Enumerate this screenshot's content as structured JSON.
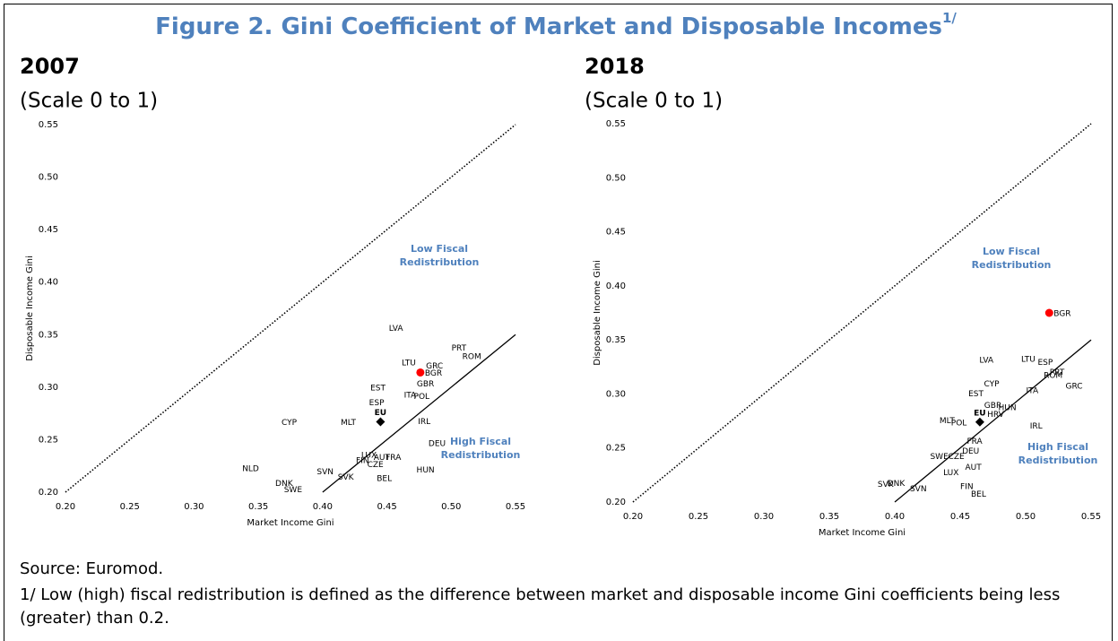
{
  "title": "Figure 2. Gini Coefficient of Market and Disposable Incomes",
  "title_note": "1/",
  "source": "Source: Euromod.",
  "footnote": "1/ Low (high) fiscal redistribution is defined as the difference between market and disposable income Gini coefficients being less (greater) than 0.2.",
  "chart_data": [
    {
      "type": "scatter",
      "title": "2007",
      "subtitle": "(Scale 0 to 1)",
      "xlabel": "Market Income Gini",
      "ylabel": "Disposable Income Gini",
      "xlim": [
        0.2,
        0.55
      ],
      "ylim": [
        0.2,
        0.55
      ],
      "xticks": [
        {
          "value": 0.2,
          "label": "0.20"
        },
        0.25,
        {
          "value": 0.3,
          "label": "0.30"
        },
        0.35,
        {
          "value": 0.4,
          "label": "0.40"
        },
        0.45,
        {
          "value": 0.5,
          "label": "0.50"
        },
        0.55
      ],
      "yticks": [
        {
          "value": 0.2,
          "label": "0.20"
        },
        0.25,
        {
          "value": 0.3,
          "label": "0.30"
        },
        0.35,
        {
          "value": 0.4,
          "label": "0.40"
        },
        0.45,
        {
          "value": 0.5,
          "label": "0.50"
        },
        0.55
      ],
      "reference_lines": [
        {
          "offset": 0,
          "style": "dotted"
        },
        {
          "offset": -0.2,
          "style": "solid"
        }
      ],
      "annotations": [
        "Low Fiscal Redistribution",
        "High Fiscal Redistribution"
      ],
      "points": [
        {
          "label": "LVA",
          "x": 0.457,
          "y": 0.356
        },
        {
          "label": "PRT",
          "x": 0.506,
          "y": 0.337
        },
        {
          "label": "ROM",
          "x": 0.516,
          "y": 0.329
        },
        {
          "label": "LTU",
          "x": 0.467,
          "y": 0.323
        },
        {
          "label": "GRC",
          "x": 0.487,
          "y": 0.32
        },
        {
          "label": "BGR",
          "x": 0.476,
          "y": 0.314,
          "marker": "circle",
          "color": "#ff0000"
        },
        {
          "label": "GBR",
          "x": 0.48,
          "y": 0.303
        },
        {
          "label": "EST",
          "x": 0.443,
          "y": 0.299
        },
        {
          "label": "ITA",
          "x": 0.468,
          "y": 0.292
        },
        {
          "label": "POL",
          "x": 0.477,
          "y": 0.291
        },
        {
          "label": "ESP",
          "x": 0.442,
          "y": 0.285
        },
        {
          "label": "EU",
          "x": 0.445,
          "y": 0.267,
          "marker": "diamond",
          "color": "#000000"
        },
        {
          "label": "CYP",
          "x": 0.374,
          "y": 0.266
        },
        {
          "label": "MLT",
          "x": 0.42,
          "y": 0.266
        },
        {
          "label": "IRL",
          "x": 0.479,
          "y": 0.267
        },
        {
          "label": "DEU",
          "x": 0.489,
          "y": 0.246
        },
        {
          "label": "LUX",
          "x": 0.436,
          "y": 0.235
        },
        {
          "label": "AUT",
          "x": 0.446,
          "y": 0.233
        },
        {
          "label": "FRA",
          "x": 0.455,
          "y": 0.233
        },
        {
          "label": "FIN",
          "x": 0.431,
          "y": 0.23
        },
        {
          "label": "CZE",
          "x": 0.441,
          "y": 0.226
        },
        {
          "label": "NLD",
          "x": 0.344,
          "y": 0.222
        },
        {
          "label": "SVN",
          "x": 0.402,
          "y": 0.219
        },
        {
          "label": "HUN",
          "x": 0.48,
          "y": 0.221
        },
        {
          "label": "SVK",
          "x": 0.418,
          "y": 0.214
        },
        {
          "label": "BEL",
          "x": 0.448,
          "y": 0.213
        },
        {
          "label": "DNK",
          "x": 0.37,
          "y": 0.208
        },
        {
          "label": "SWE",
          "x": 0.377,
          "y": 0.202
        }
      ]
    },
    {
      "type": "scatter",
      "title": "2018",
      "subtitle": "(Scale 0 to 1)",
      "xlabel": "Market Income Gini",
      "ylabel": "Disposable Income Gini",
      "xlim": [
        0.2,
        0.55
      ],
      "ylim": [
        0.2,
        0.55
      ],
      "xticks": [
        {
          "value": 0.2,
          "label": "0.20"
        },
        0.25,
        {
          "value": 0.3,
          "label": "0.30"
        },
        0.35,
        {
          "value": 0.4,
          "label": "0.40"
        },
        0.45,
        {
          "value": 0.5,
          "label": "0.50"
        },
        0.55
      ],
      "yticks": [
        {
          "value": 0.2,
          "label": "0.20"
        },
        0.25,
        {
          "value": 0.3,
          "label": "0.30"
        },
        0.35,
        {
          "value": 0.4,
          "label": "0.40"
        },
        0.45,
        {
          "value": 0.5,
          "label": "0.50"
        },
        0.55
      ],
      "reference_lines": [
        {
          "offset": 0,
          "style": "dotted"
        },
        {
          "offset": -0.2,
          "style": "solid"
        }
      ],
      "annotations": [
        "Low Fiscal Redistribution",
        "High Fiscal Redistribution"
      ],
      "points": [
        {
          "label": "BGR",
          "x": 0.518,
          "y": 0.375,
          "marker": "circle",
          "color": "#ff0000"
        },
        {
          "label": "LVA",
          "x": 0.47,
          "y": 0.331
        },
        {
          "label": "LTU",
          "x": 0.502,
          "y": 0.332
        },
        {
          "label": "ESP",
          "x": 0.515,
          "y": 0.329
        },
        {
          "label": "PRT",
          "x": 0.524,
          "y": 0.32
        },
        {
          "label": "ROM",
          "x": 0.521,
          "y": 0.317
        },
        {
          "label": "CYP",
          "x": 0.474,
          "y": 0.309
        },
        {
          "label": "ITA",
          "x": 0.505,
          "y": 0.303
        },
        {
          "label": "GRC",
          "x": 0.537,
          "y": 0.307
        },
        {
          "label": "EST",
          "x": 0.462,
          "y": 0.3
        },
        {
          "label": "GBR",
          "x": 0.475,
          "y": 0.289
        },
        {
          "label": "HUN",
          "x": 0.486,
          "y": 0.287
        },
        {
          "label": "HRV",
          "x": 0.477,
          "y": 0.281
        },
        {
          "label": "EU",
          "x": 0.465,
          "y": 0.274,
          "marker": "diamond",
          "color": "#000000"
        },
        {
          "label": "MLT",
          "x": 0.44,
          "y": 0.275
        },
        {
          "label": "POL",
          "x": 0.449,
          "y": 0.273
        },
        {
          "label": "IRL",
          "x": 0.508,
          "y": 0.27
        },
        {
          "label": "FRA",
          "x": 0.461,
          "y": 0.256
        },
        {
          "label": "DEU",
          "x": 0.458,
          "y": 0.247
        },
        {
          "label": "SWE",
          "x": 0.434,
          "y": 0.242
        },
        {
          "label": "CZE",
          "x": 0.447,
          "y": 0.242
        },
        {
          "label": "AUT",
          "x": 0.46,
          "y": 0.232
        },
        {
          "label": "LUX",
          "x": 0.443,
          "y": 0.227
        },
        {
          "label": "SVK",
          "x": 0.393,
          "y": 0.216
        },
        {
          "label": "DNK",
          "x": 0.401,
          "y": 0.217
        },
        {
          "label": "SVN",
          "x": 0.418,
          "y": 0.212
        },
        {
          "label": "FIN",
          "x": 0.455,
          "y": 0.214
        },
        {
          "label": "BEL",
          "x": 0.464,
          "y": 0.207
        }
      ]
    }
  ]
}
